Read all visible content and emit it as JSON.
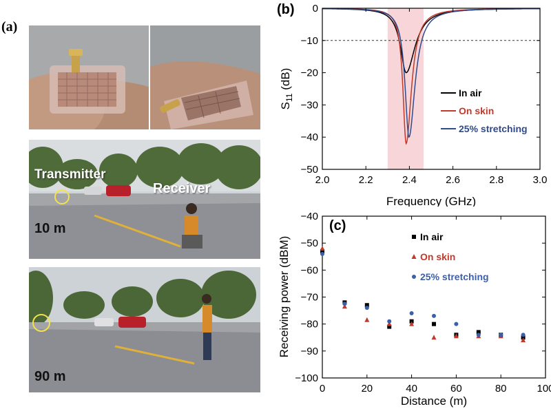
{
  "panel_a": {
    "label": "(a)",
    "photo_scene_1": {
      "transmitter_label": "Transmitter",
      "receiver_label": "Receiver",
      "distance_label": "10 m"
    },
    "photo_scene_2": {
      "distance_label": "90 m"
    }
  },
  "chart_data": [
    {
      "id": "b",
      "panel_label": "(b)",
      "type": "line",
      "xlabel": "Frequency (GHz)",
      "ylabel_main": "S",
      "ylabel_sub": "11",
      "ylabel_unit": " (dB)",
      "xlim": [
        2.0,
        3.0
      ],
      "ylim": [
        -50,
        0
      ],
      "xticks": [
        2.0,
        2.2,
        2.4,
        2.6,
        2.8,
        3.0
      ],
      "xtick_labels": [
        "2.0",
        "2.2",
        "2.4",
        "2.6",
        "2.8",
        "3.0"
      ],
      "yticks": [
        0,
        -10,
        -20,
        -30,
        -40,
        -50
      ],
      "ytick_labels": [
        "0",
        "−10",
        "−20",
        "−30",
        "−40",
        "−50"
      ],
      "shaded_band": [
        2.3,
        2.465
      ],
      "shade_color": "#f7d5d8",
      "reference_line": -10,
      "legend_position": "center-right",
      "series": [
        {
          "name": "In air",
          "color": "#000000",
          "center": 2.385,
          "min": -20,
          "width_left": 0.032,
          "width_right": 0.05
        },
        {
          "name": "On skin",
          "color": "#c0392b",
          "center": 2.385,
          "min": -42,
          "width_left": 0.018,
          "width_right": 0.03
        },
        {
          "name": "25% stretching",
          "color": "#2e4a8c",
          "center": 2.398,
          "min": -40,
          "width_left": 0.022,
          "width_right": 0.034
        }
      ]
    },
    {
      "id": "c",
      "panel_label": "(c)",
      "type": "scatter",
      "xlabel": "Distance (m)",
      "ylabel": "Receiving power (dBM)",
      "xlim": [
        0,
        100
      ],
      "ylim": [
        -100,
        -40
      ],
      "xticks": [
        0,
        20,
        40,
        60,
        80,
        100
      ],
      "xtick_labels": [
        "0",
        "20",
        "40",
        "60",
        "80",
        "100"
      ],
      "yticks": [
        -40,
        -50,
        -60,
        -70,
        -80,
        -90,
        -100
      ],
      "ytick_labels": [
        "−40",
        "−50",
        "−60",
        "−70",
        "−80",
        "−90",
        "−100"
      ],
      "legend_position": "top-right",
      "x": [
        0,
        10,
        20,
        30,
        40,
        50,
        60,
        70,
        80,
        90
      ],
      "series": [
        {
          "name": "In air",
          "color": "#000000",
          "marker": "square",
          "values": [
            -53,
            -72,
            -73,
            -81,
            -79,
            -80,
            -84,
            -83,
            -84,
            -85
          ]
        },
        {
          "name": "On skin",
          "color": "#c0392b",
          "marker": "triangle",
          "values": [
            -52,
            -73.5,
            -78.5,
            -80,
            -80,
            -85,
            -84.5,
            -84.5,
            -84.5,
            -86
          ]
        },
        {
          "name": "25% stretching",
          "color": "#3d5ea8",
          "marker": "circle",
          "values": [
            -54,
            -72.5,
            -74,
            -79,
            -76,
            -77,
            -80,
            -84,
            -84,
            -84
          ]
        }
      ]
    }
  ]
}
